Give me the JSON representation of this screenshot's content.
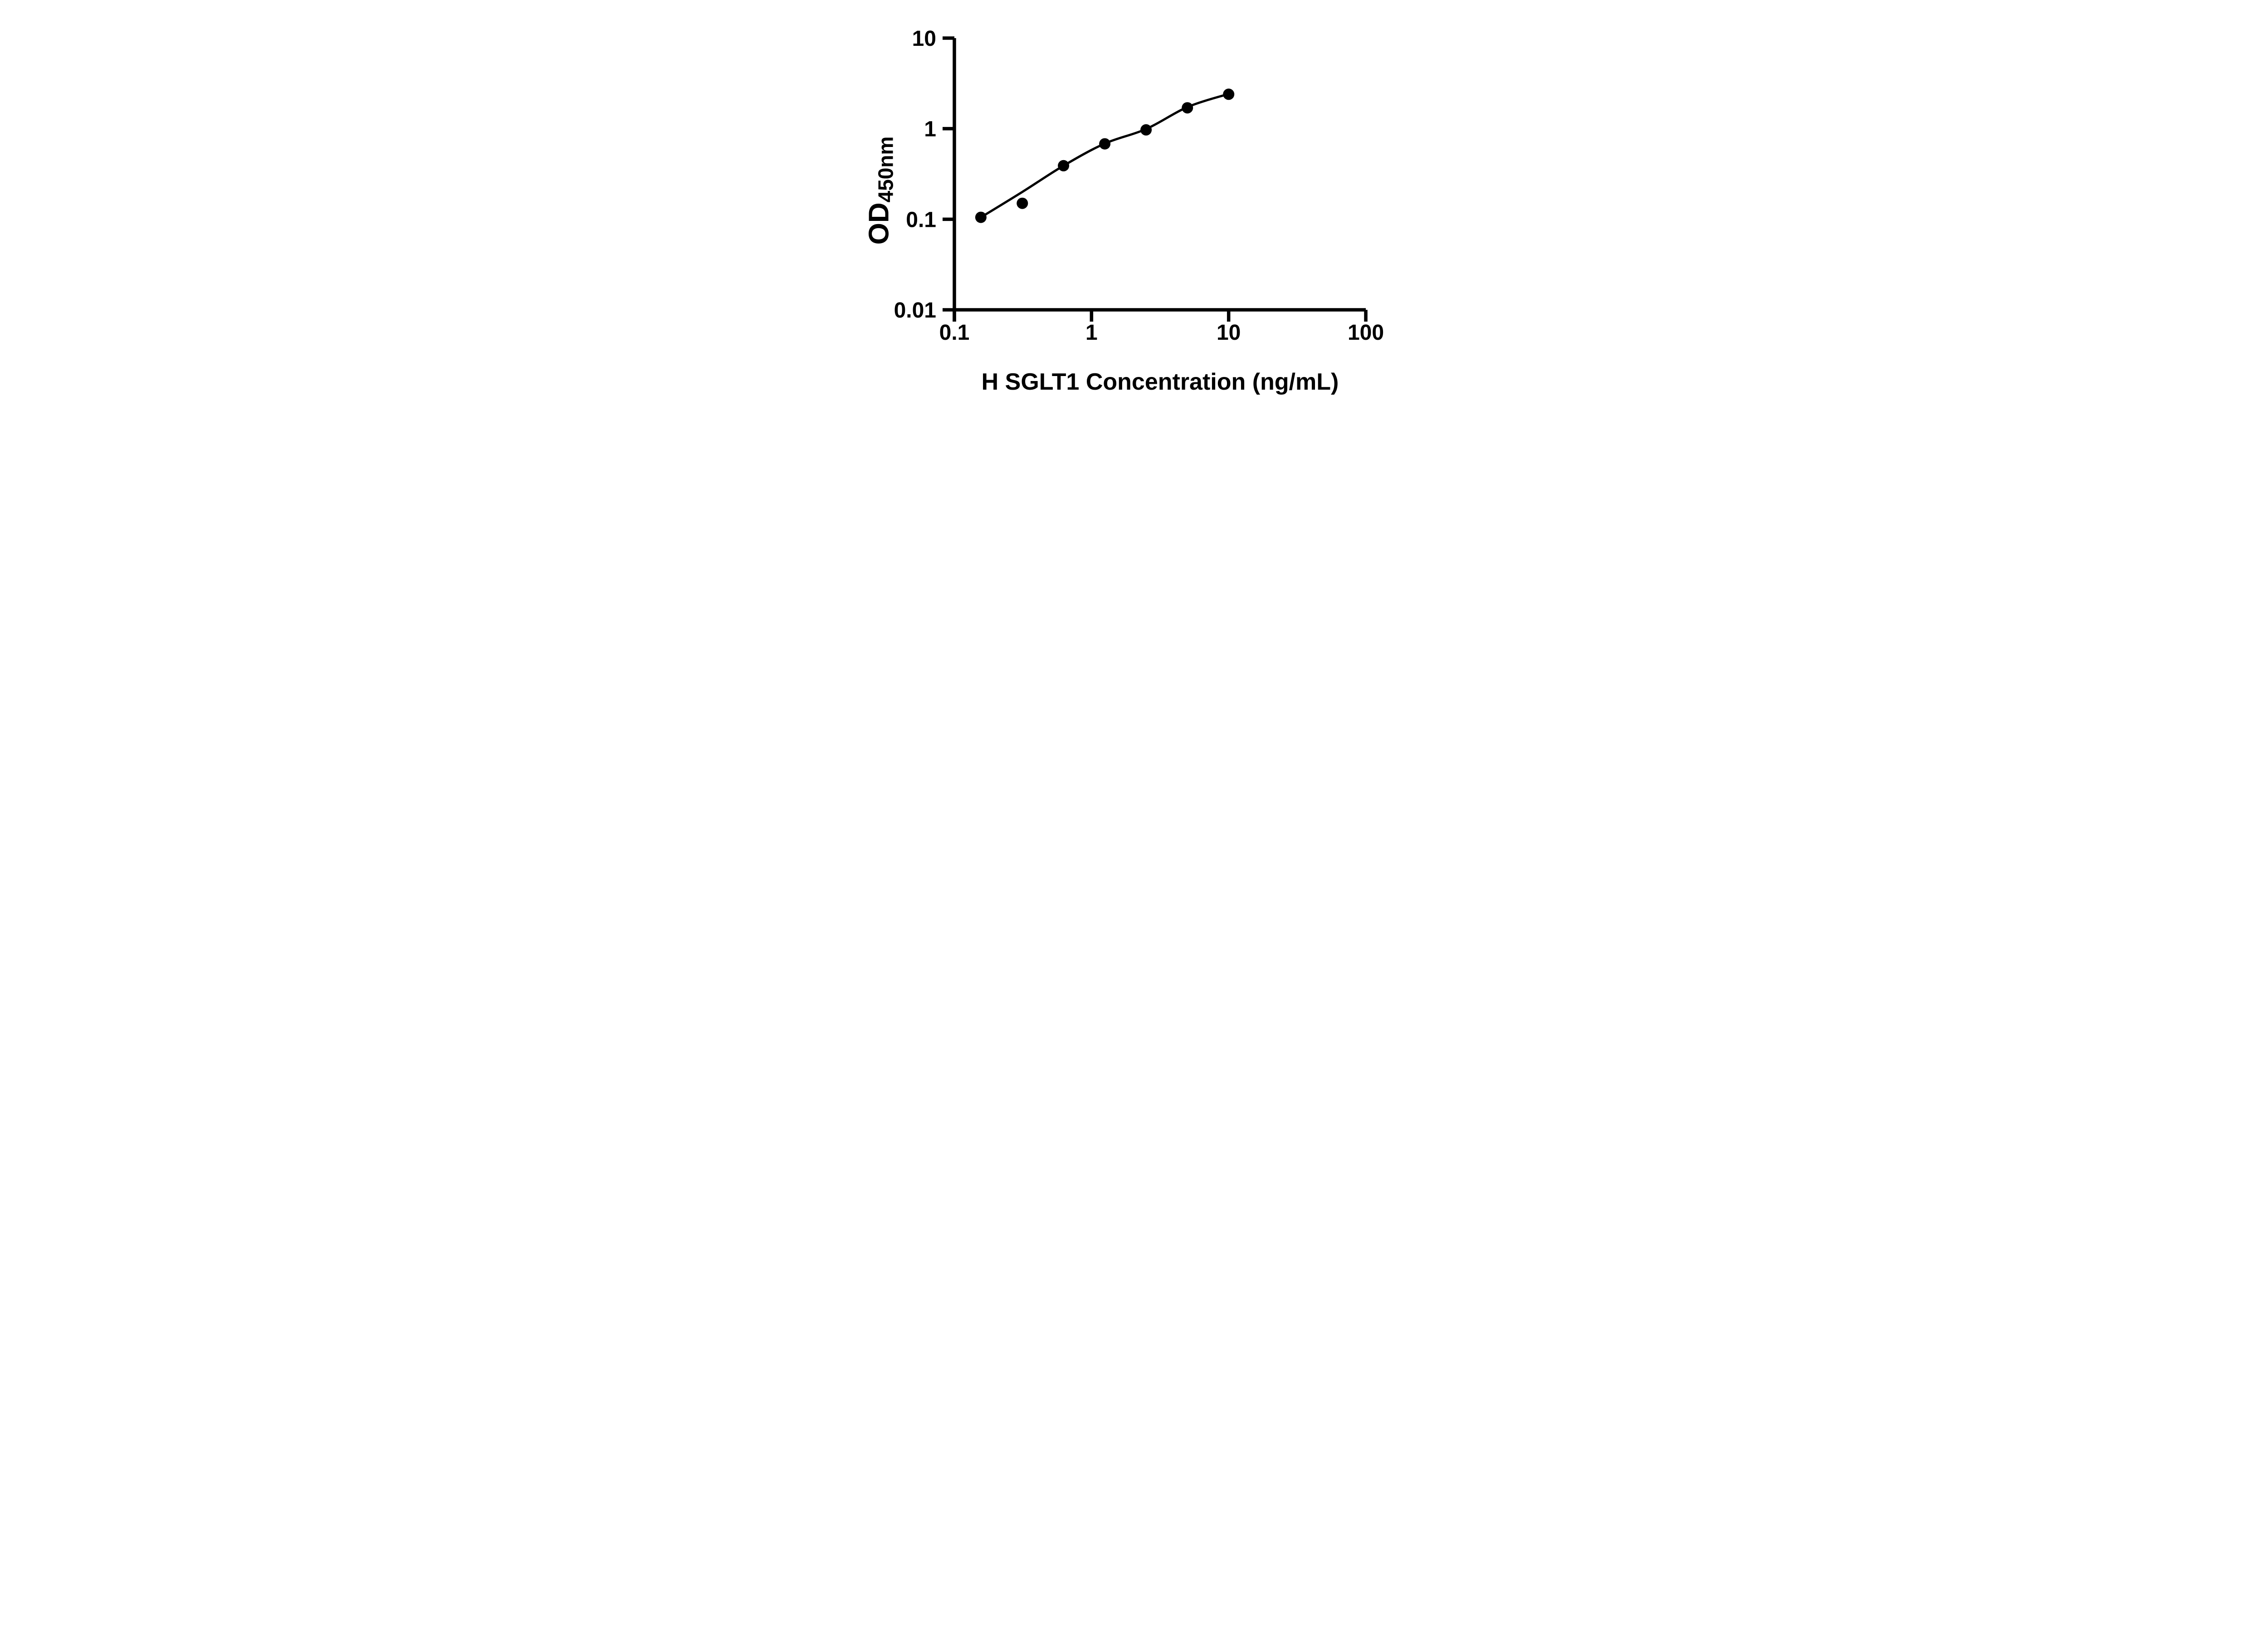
{
  "figure": {
    "background_color": "#ffffff",
    "ink_color": "#000000"
  },
  "chart_data": {
    "type": "scatter",
    "title": "",
    "xlabel": "H SGLT1 Concentration (ng/mL)",
    "ylabel_main": "OD",
    "ylabel_sub": "450nm",
    "x_scale": "log",
    "y_scale": "log",
    "xlim": [
      0.1,
      100
    ],
    "ylim": [
      0.01,
      10
    ],
    "x_ticks": [
      0.1,
      1,
      10,
      100
    ],
    "x_tick_labels": [
      "0.1",
      "1",
      "10",
      "100"
    ],
    "y_ticks": [
      10,
      1,
      0.1,
      0.01
    ],
    "y_tick_labels": [
      "10",
      "1",
      "0.1",
      "0.01"
    ],
    "grid": false,
    "legend": "none",
    "series": [
      {
        "name": "standard-points",
        "marker": "filled-circle",
        "color": "#000000",
        "x": [
          0.156,
          0.313,
          0.625,
          1.25,
          2.5,
          5,
          10
        ],
        "y": [
          0.105,
          0.15,
          0.39,
          0.68,
          0.97,
          1.7,
          2.4
        ]
      }
    ],
    "fit_curve": {
      "name": "standard-curve-fit",
      "color": "#000000",
      "x": [
        0.156,
        0.3125,
        0.625,
        1.25,
        2.5,
        5,
        10
      ],
      "y": [
        0.105,
        0.2,
        0.39,
        0.685,
        0.99,
        1.73,
        2.42
      ]
    }
  }
}
